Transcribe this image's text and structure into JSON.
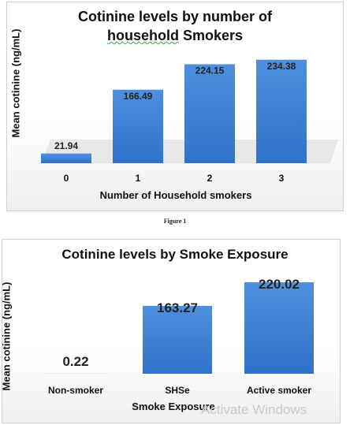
{
  "chart_data": [
    {
      "type": "bar",
      "title_line1": "Cotinine levels by number of",
      "title_line2_pre": "household",
      "title_line2_post": " Smokers",
      "xlabel": "Number of Household smokers",
      "ylabel": "Mean cotinine (ng/mL)",
      "categories": [
        "0",
        "1",
        "2",
        "3"
      ],
      "values": [
        21.94,
        166.49,
        224.15,
        234.38
      ],
      "value_labels": [
        "21.94",
        "166.49",
        "224.15",
        "234.38"
      ],
      "ylim": [
        0,
        250
      ],
      "grid": false,
      "bar_color": "#3a80d6"
    },
    {
      "type": "bar",
      "title": "Cotinine  levels by Smoke Exposure",
      "xlabel": "Smoke Exposure",
      "ylabel": "Mean cotinine (ng/mL)",
      "categories": [
        "Non-smoker",
        "SHSe",
        "Active smoker"
      ],
      "values": [
        0.22,
        163.27,
        220.02
      ],
      "value_labels": [
        "0.22",
        "163.27",
        "220.02"
      ],
      "ylim": [
        0,
        220
      ],
      "grid": false,
      "bar_color": "#3a80d6"
    }
  ],
  "figure_caption": "Figure 1",
  "watermark": "Activate Windows"
}
